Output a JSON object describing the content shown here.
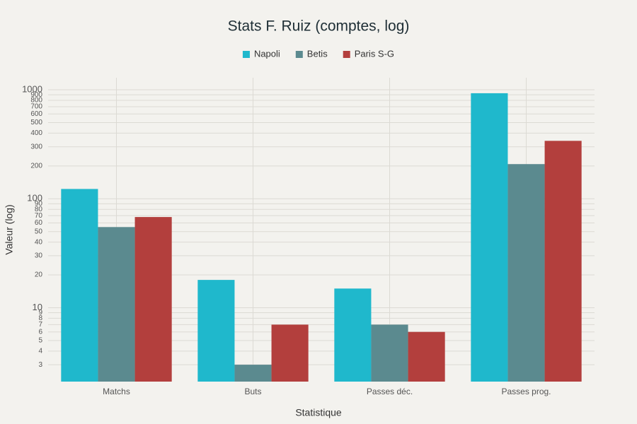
{
  "chart_data": {
    "type": "bar",
    "title": "Stats F. Ruiz (comptes, log)",
    "x_label": "Statistique",
    "y_label": "Valeur (log)",
    "categories": [
      "Matchs",
      "Buts",
      "Passes déc.",
      "Passes prog."
    ],
    "series": [
      {
        "name": "Napoli",
        "color": "#1fb8cc",
        "values": [
          123,
          18,
          15,
          930
        ]
      },
      {
        "name": "Betis",
        "color": "#5b8a8f",
        "values": [
          55,
          3,
          7,
          208
        ]
      },
      {
        "name": "Paris S-G",
        "color": "#b33f3d",
        "values": [
          68,
          7,
          6,
          340
        ]
      }
    ],
    "log_scale": true,
    "ylim": [
      2.1,
      1290
    ],
    "yticks": [
      3,
      4,
      5,
      6,
      7,
      8,
      9,
      10,
      20,
      30,
      40,
      50,
      60,
      70,
      80,
      90,
      100,
      200,
      300,
      400,
      500,
      600,
      700,
      800,
      900,
      1000
    ],
    "grid": true
  }
}
